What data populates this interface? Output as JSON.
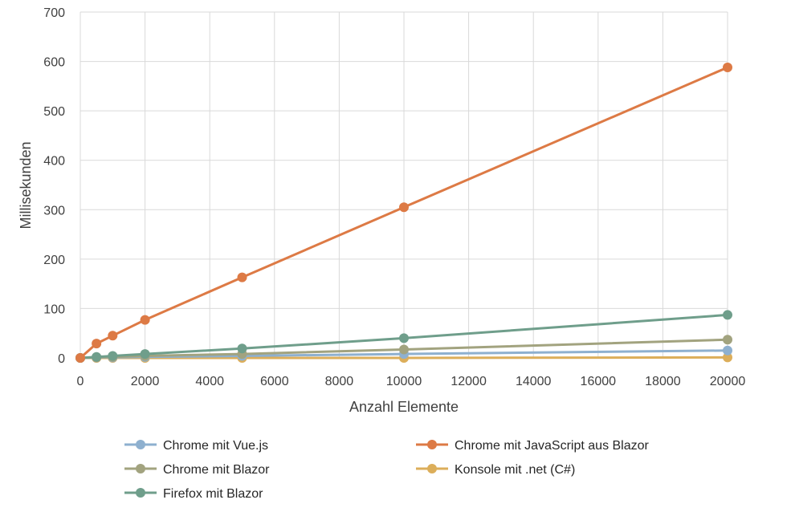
{
  "chart_data": {
    "type": "line",
    "xlabel": "Anzahl Elemente",
    "ylabel": "Millisekunden",
    "xlim": [
      0,
      20000
    ],
    "ylim": [
      0,
      700
    ],
    "x_ticks": [
      0,
      2000,
      4000,
      6000,
      8000,
      10000,
      12000,
      14000,
      16000,
      18000,
      20000
    ],
    "y_ticks": [
      0,
      100,
      200,
      300,
      400,
      500,
      600,
      700
    ],
    "grid": "both",
    "legend_position": "bottom",
    "series": [
      {
        "name": "Chrome mit Vue.js",
        "color": "#8eb0cf",
        "points": [
          [
            0,
            0
          ],
          [
            500,
            1
          ],
          [
            1000,
            1
          ],
          [
            2000,
            2
          ],
          [
            5000,
            4
          ],
          [
            10000,
            8
          ],
          [
            20000,
            15
          ]
        ]
      },
      {
        "name": "Chrome mit JavaScript aus Blazor",
        "color": "#dd7a45",
        "points": [
          [
            0,
            0
          ],
          [
            500,
            29
          ],
          [
            1000,
            45
          ],
          [
            2000,
            77
          ],
          [
            5000,
            163
          ],
          [
            10000,
            305
          ],
          [
            20000,
            588
          ]
        ]
      },
      {
        "name": "Chrome mit Blazor",
        "color": "#a2a37f",
        "points": [
          [
            0,
            0
          ],
          [
            500,
            1
          ],
          [
            1000,
            2
          ],
          [
            2000,
            4
          ],
          [
            5000,
            8
          ],
          [
            10000,
            17
          ],
          [
            20000,
            37
          ]
        ]
      },
      {
        "name": "Konsole mit .net (C#)",
        "color": "#dcae5a",
        "points": [
          [
            0,
            0
          ],
          [
            500,
            0
          ],
          [
            1000,
            0
          ],
          [
            2000,
            0
          ],
          [
            5000,
            0
          ],
          [
            10000,
            0
          ],
          [
            20000,
            1
          ]
        ]
      },
      {
        "name": "Firefox mit Blazor",
        "color": "#6f9e8b",
        "points": [
          [
            0,
            0
          ],
          [
            500,
            2
          ],
          [
            1000,
            4
          ],
          [
            2000,
            8
          ],
          [
            5000,
            19
          ],
          [
            10000,
            40
          ],
          [
            20000,
            87
          ]
        ]
      }
    ]
  }
}
